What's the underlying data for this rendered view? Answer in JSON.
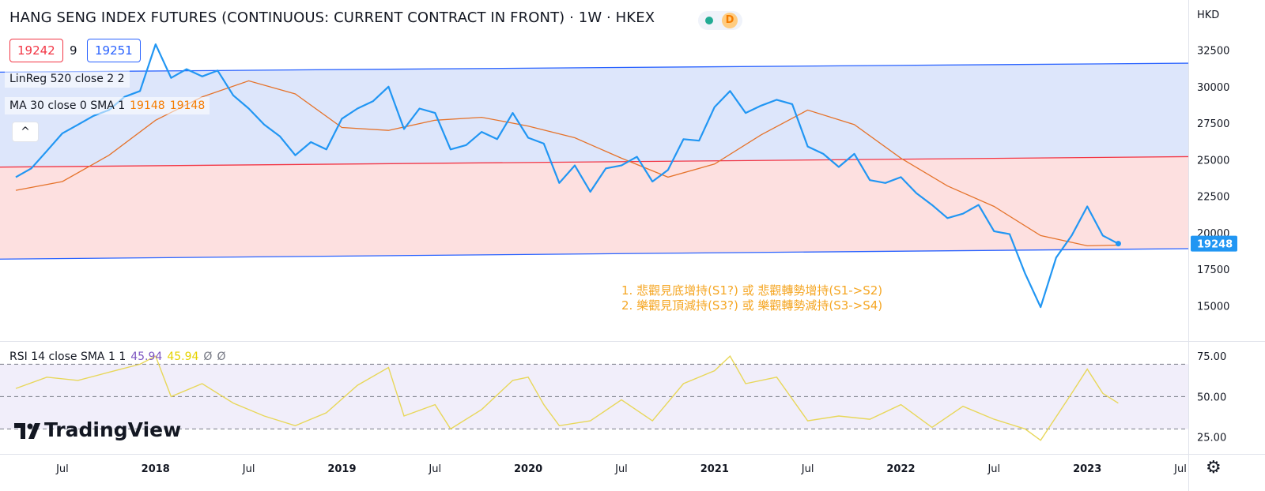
{
  "header": {
    "title": "HANG SENG INDEX FUTURES (CONTINUOUS: CURRENT CONTRACT IN FRONT) · 1W · HKEX",
    "status_icon": "market-status-dot-icon",
    "delay_badge": "D",
    "bid": "19242",
    "spread": "9",
    "ask": "19251"
  },
  "legend": {
    "linreg": "LinReg 520 close 2 2",
    "ma_label": "MA 30 close 0 SMA 1",
    "ma_value1": "19148",
    "ma_value2": "19148",
    "collapse_icon": "chevron-up-icon"
  },
  "annotation": {
    "line1": "1. 悲觀見底增持(S1?) 或 悲觀轉勢增持(S1->S2)",
    "line2": "2. 樂觀見頂減持(S3?) 或 樂觀轉勢減持(S3->S4)",
    "color": "#f5a623"
  },
  "rsi_legend": {
    "label": "RSI 14 close SMA 1 1",
    "value1": "45.94",
    "value2": "45.94",
    "na1": "Ø",
    "na2": "Ø"
  },
  "branding": {
    "logo_text": "TradingView"
  },
  "axis": {
    "currency": "HKD",
    "settings_icon": "gear-icon"
  },
  "colors": {
    "price": "#2196f3",
    "ma": "#e5732b",
    "upper_fill": "#dde6fb",
    "lower_fill": "#fde0e0",
    "channel_line": "#2962ff",
    "mid_line": "#f23645",
    "rsi": "#e8d75a",
    "rsi_band": "#f1eefa",
    "last_price_label": "#2196f3"
  },
  "chart_data": [
    {
      "type": "line",
      "name": "price",
      "x_range": [
        "2017-04",
        "2023-07"
      ],
      "ylim": [
        13500,
        33500
      ],
      "y_ticks": [
        15000,
        17500,
        20000,
        22500,
        25000,
        27500,
        30000,
        32500
      ],
      "x_ticks": [
        "Jul",
        "2018",
        "Jul",
        "2019",
        "Jul",
        "2020",
        "Jul",
        "2021",
        "Jul",
        "2022",
        "Jul",
        "2023",
        "Jul"
      ],
      "x_tick_dates": [
        "2017-07",
        "2018-01",
        "2018-07",
        "2019-01",
        "2019-07",
        "2020-01",
        "2020-07",
        "2021-01",
        "2021-07",
        "2022-01",
        "2022-07",
        "2023-01",
        "2023-07"
      ],
      "last_price": 19248,
      "series": [
        {
          "name": "Hang Seng Index Futures",
          "points": [
            [
              "2017-04",
              23800
            ],
            [
              "2017-05",
              24400
            ],
            [
              "2017-06",
              25600
            ],
            [
              "2017-07",
              26800
            ],
            [
              "2017-08",
              27400
            ],
            [
              "2017-09",
              28000
            ],
            [
              "2017-10",
              28400
            ],
            [
              "2017-11",
              29300
            ],
            [
              "2017-12",
              29700
            ],
            [
              "2018-01",
              32900
            ],
            [
              "2018-02",
              30600
            ],
            [
              "2018-03",
              31200
            ],
            [
              "2018-04",
              30700
            ],
            [
              "2018-05",
              31100
            ],
            [
              "2018-06",
              29400
            ],
            [
              "2018-07",
              28500
            ],
            [
              "2018-08",
              27400
            ],
            [
              "2018-09",
              26600
            ],
            [
              "2018-10",
              25300
            ],
            [
              "2018-11",
              26200
            ],
            [
              "2018-12",
              25700
            ],
            [
              "2019-01",
              27800
            ],
            [
              "2019-02",
              28500
            ],
            [
              "2019-03",
              29000
            ],
            [
              "2019-04",
              30000
            ],
            [
              "2019-05",
              27100
            ],
            [
              "2019-06",
              28500
            ],
            [
              "2019-07",
              28200
            ],
            [
              "2019-08",
              25700
            ],
            [
              "2019-09",
              26000
            ],
            [
              "2019-10",
              26900
            ],
            [
              "2019-11",
              26400
            ],
            [
              "2019-12",
              28200
            ],
            [
              "2020-01",
              26500
            ],
            [
              "2020-02",
              26100
            ],
            [
              "2020-03",
              23400
            ],
            [
              "2020-04",
              24600
            ],
            [
              "2020-05",
              22800
            ],
            [
              "2020-06",
              24400
            ],
            [
              "2020-07",
              24600
            ],
            [
              "2020-08",
              25200
            ],
            [
              "2020-09",
              23500
            ],
            [
              "2020-10",
              24300
            ],
            [
              "2020-11",
              26400
            ],
            [
              "2020-12",
              26300
            ],
            [
              "2021-01",
              28600
            ],
            [
              "2021-02",
              29700
            ],
            [
              "2021-03",
              28200
            ],
            [
              "2021-04",
              28700
            ],
            [
              "2021-05",
              29100
            ],
            [
              "2021-06",
              28800
            ],
            [
              "2021-07",
              25900
            ],
            [
              "2021-08",
              25400
            ],
            [
              "2021-09",
              24500
            ],
            [
              "2021-10",
              25400
            ],
            [
              "2021-11",
              23600
            ],
            [
              "2021-12",
              23400
            ],
            [
              "2022-01",
              23800
            ],
            [
              "2022-02",
              22700
            ],
            [
              "2022-03",
              21900
            ],
            [
              "2022-04",
              21000
            ],
            [
              "2022-05",
              21300
            ],
            [
              "2022-06",
              21900
            ],
            [
              "2022-07",
              20100
            ],
            [
              "2022-08",
              19900
            ],
            [
              "2022-09",
              17200
            ],
            [
              "2022-10",
              14900
            ],
            [
              "2022-11",
              18300
            ],
            [
              "2022-12",
              19800
            ],
            [
              "2023-01",
              21800
            ],
            [
              "2023-02",
              19800
            ],
            [
              "2023-03",
              19248
            ]
          ]
        },
        {
          "name": "MA 30",
          "points": [
            [
              "2017-04",
              22900
            ],
            [
              "2017-07",
              23500
            ],
            [
              "2017-10",
              25300
            ],
            [
              "2018-01",
              27700
            ],
            [
              "2018-04",
              29300
            ],
            [
              "2018-07",
              30400
            ],
            [
              "2018-10",
              29500
            ],
            [
              "2019-01",
              27200
            ],
            [
              "2019-04",
              27000
            ],
            [
              "2019-07",
              27700
            ],
            [
              "2019-10",
              27900
            ],
            [
              "2020-01",
              27300
            ],
            [
              "2020-04",
              26500
            ],
            [
              "2020-07",
              25100
            ],
            [
              "2020-10",
              23800
            ],
            [
              "2021-01",
              24700
            ],
            [
              "2021-04",
              26700
            ],
            [
              "2021-07",
              28400
            ],
            [
              "2021-10",
              27400
            ],
            [
              "2022-01",
              25100
            ],
            [
              "2022-04",
              23200
            ],
            [
              "2022-07",
              21800
            ],
            [
              "2022-10",
              19800
            ],
            [
              "2023-01",
              19100
            ],
            [
              "2023-03",
              19148
            ]
          ]
        },
        {
          "name": "LinReg upper",
          "points": [
            [
              "2017-04",
              31000
            ],
            [
              "2023-07",
              31600
            ]
          ]
        },
        {
          "name": "LinReg middle",
          "points": [
            [
              "2017-04",
              24500
            ],
            [
              "2023-07",
              25200
            ]
          ]
        },
        {
          "name": "LinReg lower",
          "points": [
            [
              "2017-04",
              18200
            ],
            [
              "2023-07",
              18900
            ]
          ]
        }
      ]
    },
    {
      "type": "line",
      "name": "RSI 14",
      "ylim": [
        18,
        78
      ],
      "y_ticks": [
        25,
        50,
        75
      ],
      "band": [
        30,
        70
      ],
      "series": [
        {
          "name": "RSI",
          "points": [
            [
              "2017-04",
              55
            ],
            [
              "2017-06",
              62
            ],
            [
              "2017-08",
              60
            ],
            [
              "2017-10",
              65
            ],
            [
              "2017-12",
              70
            ],
            [
              "2018-01",
              75
            ],
            [
              "2018-02",
              50
            ],
            [
              "2018-04",
              58
            ],
            [
              "2018-06",
              46
            ],
            [
              "2018-08",
              38
            ],
            [
              "2018-10",
              32
            ],
            [
              "2018-12",
              40
            ],
            [
              "2019-02",
              57
            ],
            [
              "2019-04",
              68
            ],
            [
              "2019-05",
              38
            ],
            [
              "2019-07",
              45
            ],
            [
              "2019-08",
              30
            ],
            [
              "2019-10",
              42
            ],
            [
              "2019-12",
              60
            ],
            [
              "2020-01",
              62
            ],
            [
              "2020-02",
              45
            ],
            [
              "2020-03",
              32
            ],
            [
              "2020-05",
              35
            ],
            [
              "2020-07",
              48
            ],
            [
              "2020-09",
              35
            ],
            [
              "2020-11",
              58
            ],
            [
              "2021-01",
              66
            ],
            [
              "2021-02",
              75
            ],
            [
              "2021-03",
              58
            ],
            [
              "2021-05",
              62
            ],
            [
              "2021-07",
              35
            ],
            [
              "2021-09",
              38
            ],
            [
              "2021-11",
              36
            ],
            [
              "2022-01",
              45
            ],
            [
              "2022-03",
              31
            ],
            [
              "2022-05",
              44
            ],
            [
              "2022-07",
              36
            ],
            [
              "2022-09",
              30
            ],
            [
              "2022-10",
              23
            ],
            [
              "2022-12",
              52
            ],
            [
              "2023-01",
              67
            ],
            [
              "2023-02",
              52
            ],
            [
              "2023-03",
              45.94
            ]
          ]
        }
      ]
    }
  ]
}
